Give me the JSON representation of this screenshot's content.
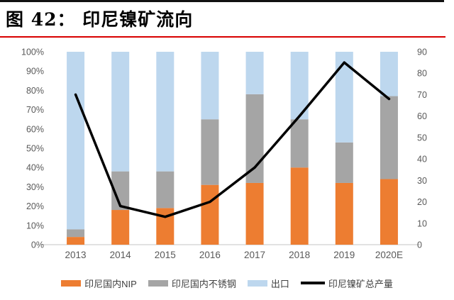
{
  "figure": {
    "title": "图 42： 印尼镍矿流向"
  },
  "colors": {
    "orange": "#ED7D31",
    "gray": "#A5A5A5",
    "light_blue": "#BDD7EE",
    "line_black": "#000000",
    "axis_text": "#595959",
    "baseline_gray": "#D9D9D9",
    "title_underline_red": "#D80000",
    "top_rule_black": "#111111"
  },
  "chart_data": {
    "type": "bar",
    "subtype": "stacked-bar-with-line-combo",
    "categories": [
      "2013",
      "2014",
      "2015",
      "2016",
      "2017",
      "2018",
      "2019",
      "2020E"
    ],
    "series": [
      {
        "name": "印尼国内NIP",
        "type": "bar-stacked",
        "axis": "left",
        "color": "#ED7D31",
        "values": [
          4,
          18,
          19,
          31,
          32,
          40,
          32,
          34
        ]
      },
      {
        "name": "印尼国内不锈钢",
        "type": "bar-stacked",
        "axis": "left",
        "color": "#A5A5A5",
        "values": [
          4,
          20,
          19,
          34,
          46,
          25,
          21,
          43
        ]
      },
      {
        "name": "出口",
        "type": "bar-stacked",
        "axis": "left",
        "color": "#BDD7EE",
        "values": [
          92,
          62,
          62,
          35,
          22,
          35,
          47,
          23
        ]
      },
      {
        "name": "印尼镍矿总产量",
        "type": "line",
        "axis": "right",
        "color": "#000000",
        "values": [
          70,
          18,
          13,
          20,
          36,
          60,
          85,
          68
        ]
      }
    ],
    "left_axis": {
      "min": 0,
      "max": 100,
      "ticks": [
        "0%",
        "10%",
        "20%",
        "30%",
        "40%",
        "50%",
        "60%",
        "70%",
        "80%",
        "90%",
        "100%"
      ]
    },
    "right_axis": {
      "min": 0,
      "max": 90,
      "ticks": [
        "0",
        "10",
        "20",
        "30",
        "40",
        "50",
        "60",
        "70",
        "80",
        "90"
      ]
    },
    "legend_position": "bottom",
    "grid": false,
    "title": "印尼镍矿流向"
  }
}
